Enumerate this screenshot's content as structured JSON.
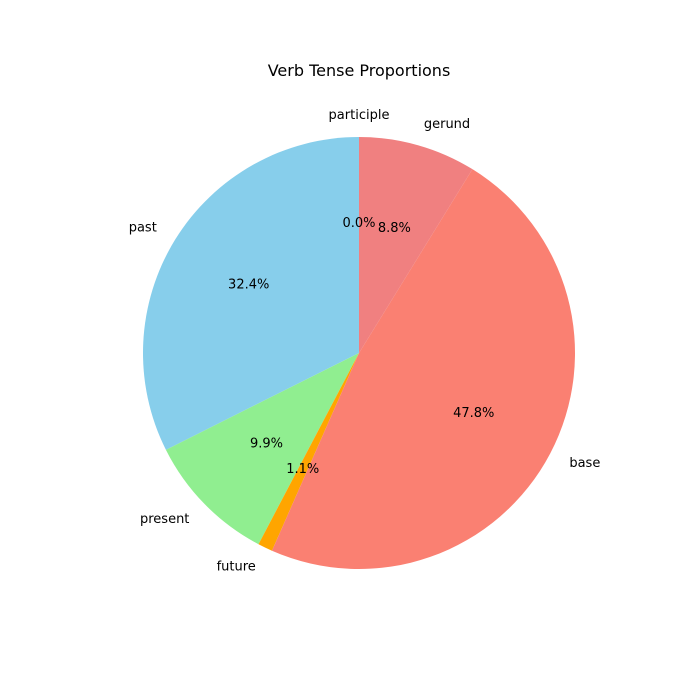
{
  "chart_data": {
    "type": "pie",
    "title": "Verb Tense Proportions",
    "start_angle_deg": 90,
    "direction": "counterclockwise",
    "slices": [
      {
        "label": "participle",
        "value": 0.0,
        "pct_label": "0.0%",
        "color": "#ffd700"
      },
      {
        "label": "past",
        "value": 32.4,
        "pct_label": "32.4%",
        "color": "#87ceeb"
      },
      {
        "label": "present",
        "value": 9.9,
        "pct_label": "9.9%",
        "color": "#90ee90"
      },
      {
        "label": "future",
        "value": 1.1,
        "pct_label": "1.1%",
        "color": "#ffa500"
      },
      {
        "label": "base",
        "value": 47.8,
        "pct_label": "47.8%",
        "color": "#fa8072"
      },
      {
        "label": "gerund",
        "value": 8.8,
        "pct_label": "8.8%",
        "color": "#f08080"
      }
    ]
  }
}
